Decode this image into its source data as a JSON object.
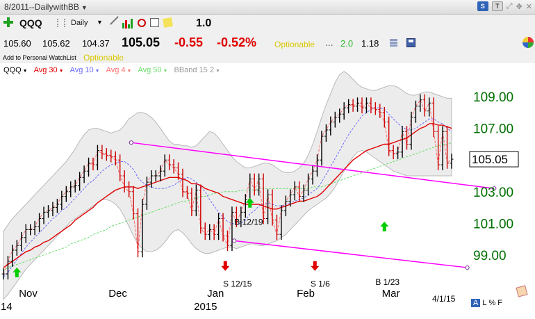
{
  "titlebar": {
    "title": "8/2011--DailywithBB",
    "buttons": [
      "S",
      "T"
    ]
  },
  "toolbar": {
    "symbol": "QQQ",
    "period": "Daily",
    "version": "1.0"
  },
  "quote": {
    "open": "105.60",
    "high": "105.62",
    "low": "104.37",
    "last": "105.05",
    "change": "-0.55",
    "change_pct": "-0.52%",
    "optionable": "Optionable",
    "dots": "...",
    "ratio": "2.0",
    "beta": "1.18"
  },
  "watchlist": {
    "add_label": "Add to Personal WatchList",
    "optionable": "Optionable"
  },
  "footer": {
    "date": "4/1/15",
    "toggles": [
      "A",
      "L",
      "%",
      "F"
    ]
  },
  "colors": {
    "accent_magenta": "#ff00ff",
    "avg30": "#e00000",
    "avg10": "#6b6bff",
    "avg4": "#ff6f6f",
    "avg50": "#66dd66",
    "band_fill": "#ececec",
    "price_axis": "#007000",
    "arrow_green": "#00cc00",
    "arrow_red": "#e00000"
  },
  "chart_data": {
    "type": "line",
    "title": "",
    "ylabel": "",
    "xlabel": "",
    "symbol": "QQQ",
    "ylim": [
      97.5,
      110.5
    ],
    "y_ticks": [
      "109.00",
      "107.00",
      "105.05",
      "103.00",
      "101.00",
      "99.00"
    ],
    "y_tick_values": [
      109,
      107,
      105.05,
      103,
      101,
      99
    ],
    "x_ticks": [
      "Nov",
      "Dec",
      "Jan",
      "Feb",
      "Mar",
      "2015",
      "14"
    ],
    "x_tick_positions": [
      0.5,
      20.5,
      42.5,
      62.5,
      81.5,
      42.5,
      0
    ],
    "x_count": 101,
    "legend": [
      {
        "key": "sym",
        "label": "QQQ",
        "color": "#000000"
      },
      {
        "key": "a30",
        "label": "Avg 30",
        "color": "#e00000"
      },
      {
        "key": "a10",
        "label": "Avg 10",
        "color": "#6b6bff"
      },
      {
        "key": "a4",
        "label": "Avg 4",
        "color": "#ff6f6f"
      },
      {
        "key": "a50",
        "label": "Avg 50",
        "color": "#66dd66"
      },
      {
        "key": "bb",
        "label": "BBand 15 2",
        "color": "#999999"
      }
    ],
    "close": [
      97.8,
      98.6,
      99.3,
      99.6,
      100.1,
      100.6,
      100.6,
      100.8,
      101.3,
      101.7,
      101.8,
      102.0,
      102.2,
      102.7,
      103.0,
      103.3,
      103.4,
      103.9,
      104.3,
      104.8,
      104.7,
      105.6,
      105.4,
      105.3,
      105.2,
      105.0,
      104.0,
      103.3,
      103.0,
      101.6,
      99.2,
      102.2,
      103.6,
      104.0,
      104.0,
      104.3,
      105.0,
      104.7,
      104.5,
      104.1,
      103.0,
      102.9,
      101.8,
      103.1,
      100.7,
      100.3,
      100.6,
      100.3,
      101.3,
      100.2,
      99.6,
      101.7,
      101.1,
      101.7,
      102.5,
      103.8,
      103.1,
      103.8,
      101.3,
      102.8,
      101.2,
      100.3,
      101.8,
      102.4,
      102.8,
      103.3,
      102.7,
      103.1,
      103.8,
      104.3,
      105.0,
      106.5,
      106.9,
      107.4,
      107.7,
      107.9,
      108.3,
      108.5,
      108.4,
      108.6,
      108.3,
      108.6,
      108.3,
      108.2,
      108.0,
      107.4,
      105.6,
      105.4,
      105.5,
      106.8,
      106.0,
      107.7,
      108.4,
      108.8,
      108.1,
      108.6,
      106.8,
      104.7,
      106.8,
      104.8,
      105.05
    ],
    "avg30": [
      98.2,
      98.4,
      98.6,
      98.8,
      99.0,
      99.2,
      99.3,
      99.5,
      99.6,
      99.8,
      99.9,
      100.1,
      100.3,
      100.5,
      100.7,
      100.9,
      101.2,
      101.4,
      101.6,
      101.8,
      102.0,
      102.3,
      102.5,
      102.7,
      102.9,
      103.1,
      103.2,
      103.3,
      103.3,
      103.3,
      103.2,
      103.3,
      103.4,
      103.5,
      103.6,
      103.7,
      103.8,
      103.9,
      103.9,
      103.9,
      103.8,
      103.7,
      103.5,
      103.5,
      103.4,
      103.2,
      103.1,
      103.0,
      102.9,
      102.7,
      102.6,
      102.5,
      102.4,
      102.3,
      102.2,
      102.2,
      102.2,
      102.2,
      102.1,
      102.0,
      101.9,
      101.9,
      102.0,
      102.1,
      102.2,
      102.3,
      102.4,
      102.4,
      102.5,
      102.6,
      102.7,
      102.9,
      103.2,
      103.5,
      103.8,
      104.1,
      104.4,
      104.7,
      105.0,
      105.2,
      105.4,
      105.6,
      105.7,
      105.8,
      105.9,
      106.0,
      106.0,
      106.1,
      106.2,
      106.3,
      106.4,
      106.6,
      106.8,
      107.0,
      107.1,
      107.3,
      107.3,
      107.2,
      107.2,
      107.1,
      107.0
    ],
    "avg10": [
      97.6,
      97.9,
      98.3,
      98.7,
      99.1,
      99.5,
      99.8,
      100.1,
      100.4,
      100.7,
      101.0,
      101.3,
      101.5,
      101.8,
      102.0,
      102.3,
      102.6,
      102.9,
      103.2,
      103.5,
      103.7,
      104.0,
      104.3,
      104.5,
      104.7,
      104.8,
      104.9,
      104.9,
      104.7,
      104.4,
      103.9,
      103.6,
      103.4,
      103.3,
      103.2,
      103.2,
      103.2,
      103.3,
      103.4,
      103.6,
      103.8,
      103.9,
      103.8,
      103.6,
      103.3,
      103.0,
      102.5,
      102.1,
      101.7,
      101.4,
      101.1,
      101.0,
      100.9,
      101.0,
      101.2,
      101.6,
      101.8,
      102.1,
      102.2,
      102.3,
      102.2,
      102.1,
      102.1,
      102.2,
      102.3,
      102.4,
      102.5,
      102.6,
      102.8,
      103.0,
      103.2,
      103.6,
      104.1,
      104.6,
      105.1,
      105.6,
      106.1,
      106.6,
      107.0,
      107.4,
      107.8,
      108.0,
      108.2,
      108.3,
      108.3,
      108.2,
      107.9,
      107.6,
      107.3,
      107.1,
      106.9,
      106.9,
      107.0,
      107.2,
      107.4,
      107.6,
      107.6,
      107.4,
      107.3,
      107.0,
      106.8
    ],
    "avg50": [
      98.0,
      98.2,
      98.3,
      98.4,
      98.5,
      98.6,
      98.7,
      98.8,
      98.9,
      99.0,
      99.1,
      99.2,
      99.3,
      99.4,
      99.5,
      99.7,
      99.8,
      99.9,
      100.0,
      100.1,
      100.3,
      100.4,
      100.5,
      100.6,
      100.8,
      100.9,
      101.0,
      101.1,
      101.2,
      101.3,
      101.4,
      101.5,
      101.6,
      101.7,
      101.8,
      101.9,
      102.0,
      102.1,
      102.2,
      102.3,
      102.4,
      102.4,
      102.5,
      102.6,
      102.7,
      102.7,
      102.8,
      102.9,
      102.9,
      103.0,
      103.0,
      103.0,
      103.0,
      103.1,
      103.1,
      103.1,
      103.1,
      103.2,
      103.2,
      103.2,
      103.2,
      103.2,
      103.2,
      103.2,
      103.2,
      103.2,
      103.2,
      103.2,
      103.2,
      103.3,
      103.3,
      103.3,
      103.4,
      103.5,
      103.6,
      103.7,
      103.8,
      103.9,
      104.0,
      104.1,
      104.2,
      104.3,
      104.4,
      104.5,
      104.6,
      104.7,
      104.8,
      104.9,
      105.0,
      105.1,
      105.2,
      105.3,
      105.4,
      105.5,
      105.6,
      105.7,
      105.8,
      105.9,
      106.0,
      106.0,
      106.1
    ],
    "bb_upper": [
      100.5,
      100.9,
      101.3,
      101.6,
      101.9,
      102.2,
      102.5,
      102.8,
      103.1,
      103.4,
      103.7,
      104.0,
      104.3,
      104.6,
      104.9,
      105.3,
      105.7,
      106.2,
      106.6,
      106.9,
      107.0,
      107.0,
      106.9,
      106.8,
      106.7,
      106.8,
      106.9,
      107.2,
      107.6,
      107.8,
      108.0,
      108.0,
      107.9,
      107.7,
      107.4,
      107.0,
      106.6,
      106.2,
      106.0,
      106.0,
      105.9,
      105.9,
      105.8,
      105.9,
      106.2,
      106.5,
      106.8,
      106.7,
      106.4,
      106.0,
      105.6,
      105.2,
      104.9,
      104.7,
      104.5,
      104.5,
      104.6,
      104.7,
      104.8,
      104.8,
      104.7,
      104.5,
      104.3,
      104.2,
      104.2,
      104.3,
      104.5,
      104.8,
      105.3,
      106.0,
      106.8,
      107.7,
      108.5,
      109.2,
      109.9,
      110.4,
      110.6,
      110.4,
      110.1,
      109.8,
      109.6,
      109.5,
      109.4,
      109.4,
      109.5,
      109.6,
      109.7,
      109.7,
      109.6,
      109.4,
      109.2,
      109.1,
      109.1,
      109.2,
      109.3,
      109.3,
      109.2,
      109.1,
      109.0,
      108.9,
      108.9
    ],
    "bb_lower": [
      96.2,
      96.5,
      96.9,
      97.3,
      97.7,
      98.1,
      98.4,
      98.7,
      99.0,
      99.3,
      99.6,
      99.9,
      100.2,
      100.5,
      100.8,
      101.1,
      101.3,
      101.5,
      101.7,
      101.9,
      102.1,
      102.3,
      102.5,
      102.5,
      102.4,
      102.2,
      101.9,
      101.4,
      100.8,
      100.2,
      99.7,
      99.4,
      99.2,
      99.2,
      99.3,
      99.5,
      99.8,
      100.2,
      100.5,
      100.6,
      100.4,
      100.1,
      99.7,
      99.4,
      99.2,
      99.1,
      99.1,
      99.2,
      99.3,
      99.4,
      99.5,
      99.5,
      99.4,
      99.5,
      99.6,
      99.7,
      99.7,
      99.6,
      99.6,
      99.7,
      99.8,
      99.9,
      100.1,
      100.3,
      100.6,
      100.9,
      101.2,
      101.5,
      101.8,
      102.0,
      102.2,
      102.4,
      102.6,
      102.9,
      103.3,
      103.8,
      104.3,
      104.8,
      105.2,
      105.5,
      105.6,
      105.5,
      105.3,
      105.1,
      104.9,
      104.7,
      104.5,
      104.3,
      104.2,
      104.1,
      104.0,
      104.0,
      104.0,
      104.0,
      104.0,
      104.0,
      104.0,
      104.0,
      104.0,
      104.0,
      104.0
    ],
    "trendlines": [
      {
        "x": [
          28.5,
          109.5
        ],
        "y": [
          106.1,
          103.2
        ]
      },
      {
        "x": [
          51.5,
          103.5
        ],
        "y": [
          99.9,
          98.2
        ]
      },
      {
        "x": [
          119.5,
          151.5
        ],
        "y": [
          109.4,
          109.0
        ]
      },
      {
        "x": [
          131.5,
          148.5
        ],
        "y": [
          104.6,
          104.1
        ]
      }
    ],
    "annotations": [
      {
        "text": "B 12/19",
        "x": 51.5,
        "y": 100.9
      },
      {
        "text": "S 12/15",
        "x": 49.0,
        "y": 97.0
      },
      {
        "text": "S 1/6",
        "x": 68.5,
        "y": 97.0
      },
      {
        "text": "B 1/23",
        "x": 83.0,
        "y": 97.1
      }
    ],
    "arrows": [
      {
        "dir": "up",
        "x": 3.0,
        "y": 97.9,
        "color": "green"
      },
      {
        "dir": "up",
        "x": 55.0,
        "y": 102.3,
        "color": "green"
      },
      {
        "dir": "up",
        "x": 85.0,
        "y": 100.8,
        "color": "green"
      },
      {
        "dir": "down",
        "x": 49.5,
        "y": 98.3,
        "color": "red"
      },
      {
        "dir": "down",
        "x": 69.5,
        "y": 98.3,
        "color": "red"
      }
    ]
  }
}
